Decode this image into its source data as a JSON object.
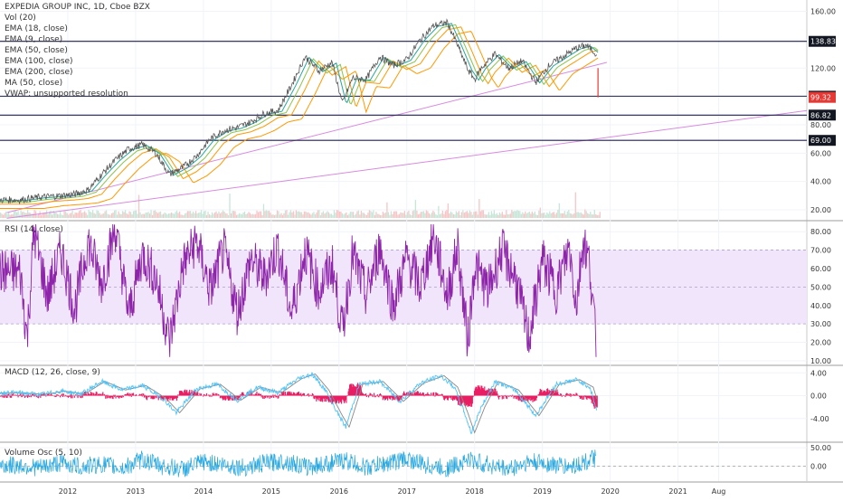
{
  "header": {
    "symbol_line": "EXPEDIA GROUP INC, 1D, Cboe BZX"
  },
  "main_legend": [
    "Vol (20)",
    "EMA (18, close)",
    "EMA (9, close)",
    "EMA (50, close)",
    "EMA (100, close)",
    "EMA (200, close)",
    "MA (50, close)",
    "VWAP: unsupported resolution"
  ],
  "panes": {
    "rsi_title": "RSI (14, close)",
    "macd_title": "MACD (12, 26, close, 9)",
    "volosc_title": "Volume Osc (5, 10)"
  },
  "colors": {
    "price_line": "#555555",
    "ema_short": "#26a69a",
    "ema_mid": "#8bc34a",
    "ema_long": "#ff9800",
    "trendline": "#d88be0",
    "hline": "#1f1f4d",
    "rsi_line": "#8e24aa",
    "rsi_band": "#f1e5fb",
    "macd_line": "#4fc3f7",
    "signal_line": "#ff9800",
    "hist_color": "#e91e63",
    "vosc_line": "#29a8e0",
    "badge_dark": "#131722",
    "badge_red": "#e53935"
  },
  "chart_data": [
    {
      "type": "line",
      "title": "EXPEDIA GROUP INC, 1D, Cboe BZX",
      "x_ticks": [
        "2012",
        "2013",
        "2014",
        "2015",
        "2016",
        "2017",
        "2018",
        "2019",
        "2020",
        "2021",
        "Aug"
      ],
      "y_ticks": [
        20,
        40,
        60,
        80,
        100,
        120,
        140,
        160
      ],
      "ylim": [
        13,
        168
      ],
      "series": [
        {
          "name": "Price",
          "x": [
            2011.3,
            2011.6,
            2011.9,
            2012.1,
            2012.3,
            2012.5,
            2012.7,
            2012.9,
            2013.1,
            2013.3,
            2013.5,
            2013.7,
            2013.9,
            2014.1,
            2014.3,
            2014.5,
            2014.7,
            2014.9,
            2015.1,
            2015.3,
            2015.5,
            2015.7,
            2015.9,
            2016.05,
            2016.2,
            2016.4,
            2016.6,
            2016.8,
            2017.0,
            2017.2,
            2017.4,
            2017.6,
            2017.75,
            2017.9,
            2018.0,
            2018.1,
            2018.3,
            2018.5,
            2018.7,
            2018.9,
            2019.1,
            2019.3,
            2019.5,
            2019.65,
            2019.8
          ],
          "values": [
            27,
            29,
            30,
            31,
            34,
            45,
            55,
            63,
            66,
            60,
            45,
            50,
            58,
            70,
            76,
            78,
            82,
            88,
            90,
            108,
            128,
            118,
            124,
            95,
            113,
            112,
            128,
            122,
            126,
            140,
            150,
            152,
            136,
            119,
            112,
            120,
            130,
            120,
            125,
            110,
            122,
            128,
            134,
            136,
            130
          ]
        }
      ],
      "horizontal_levels": [
        138.83,
        100.14,
        86.82,
        69.0
      ],
      "price_badges": [
        "138.83",
        "100.14",
        "99.32",
        "86.82",
        "69.00"
      ],
      "grid": true
    },
    {
      "type": "line",
      "title": "RSI (14, close)",
      "y_ticks": [
        10,
        20,
        30,
        40,
        50,
        60,
        70,
        80
      ],
      "ylim": [
        8,
        85
      ],
      "band": [
        30,
        70
      ],
      "series": [
        {
          "name": "RSI",
          "x": [
            2011.3,
            2011.4,
            2011.5,
            2011.7,
            2011.9,
            2012.1,
            2012.3,
            2012.5,
            2012.7,
            2012.9,
            2013.1,
            2013.3,
            2013.5,
            2013.7,
            2013.9,
            2014.1,
            2014.3,
            2014.5,
            2014.7,
            2014.9,
            2015.1,
            2015.3,
            2015.5,
            2015.7,
            2015.9,
            2016.05,
            2016.2,
            2016.4,
            2016.6,
            2016.8,
            2017.0,
            2017.2,
            2017.4,
            2017.6,
            2017.75,
            2017.9,
            2018.0,
            2018.2,
            2018.4,
            2018.6,
            2018.8,
            2019.0,
            2019.2,
            2019.4,
            2019.5,
            2019.6,
            2019.7,
            2019.8
          ],
          "values": [
            58,
            22,
            80,
            45,
            70,
            38,
            75,
            52,
            82,
            35,
            68,
            55,
            20,
            62,
            75,
            48,
            70,
            36,
            65,
            55,
            72,
            35,
            70,
            48,
            62,
            26,
            68,
            45,
            72,
            40,
            66,
            50,
            78,
            45,
            72,
            20,
            62,
            48,
            70,
            55,
            22,
            65,
            48,
            72,
            40,
            76,
            62,
            14
          ]
        }
      ],
      "grid": true
    },
    {
      "type": "line",
      "title": "MACD (12, 26, close, 9)",
      "y_ticks": [
        -4.0,
        0.0,
        4.0
      ],
      "ylim": [
        -8,
        5
      ],
      "series": [
        {
          "name": "MACD",
          "x": [
            2011.3,
            2011.6,
            2011.9,
            2012.2,
            2012.5,
            2012.8,
            2013.1,
            2013.4,
            2013.6,
            2013.9,
            2014.2,
            2014.5,
            2014.8,
            2015.1,
            2015.4,
            2015.6,
            2015.8,
            2016.0,
            2016.1,
            2016.3,
            2016.6,
            2016.9,
            2017.2,
            2017.5,
            2017.7,
            2017.85,
            2017.95,
            2018.1,
            2018.3,
            2018.6,
            2018.9,
            2019.2,
            2019.5,
            2019.7,
            2019.8
          ],
          "values": [
            0.5,
            0.2,
            0.8,
            0.3,
            2.5,
            1.0,
            1.8,
            -0.5,
            -3.0,
            1.2,
            2.0,
            -0.8,
            1.5,
            0.5,
            3.0,
            3.8,
            1.0,
            -3.5,
            -5.5,
            2.0,
            2.5,
            -1.0,
            2.2,
            3.5,
            1.5,
            -3.0,
            -6.5,
            -2.0,
            2.5,
            1.0,
            -3.5,
            2.0,
            2.8,
            1.5,
            -2.5
          ]
        }
      ],
      "grid": true
    },
    {
      "type": "line",
      "title": "Volume Osc (5, 10)",
      "y_ticks": [
        0.0,
        50.0
      ],
      "ylim": [
        -40,
        60
      ],
      "series": [
        {
          "name": "Volume Osc",
          "x": [
            2011.3,
            2011.6,
            2011.9,
            2012.2,
            2012.5,
            2012.8,
            2013.1,
            2013.4,
            2013.7,
            2014.0,
            2014.3,
            2014.6,
            2014.9,
            2015.2,
            2015.5,
            2015.8,
            2016.1,
            2016.4,
            2016.7,
            2017.0,
            2017.3,
            2017.6,
            2017.9,
            2018.2,
            2018.5,
            2018.8,
            2019.1,
            2019.4,
            2019.6,
            2019.8
          ],
          "values": [
            5,
            -10,
            25,
            -5,
            15,
            -15,
            45,
            0,
            -20,
            30,
            10,
            -10,
            20,
            35,
            -5,
            15,
            40,
            -10,
            20,
            50,
            5,
            -15,
            45,
            10,
            -20,
            30,
            15,
            -5,
            25,
            55
          ]
        }
      ],
      "grid": true
    }
  ]
}
